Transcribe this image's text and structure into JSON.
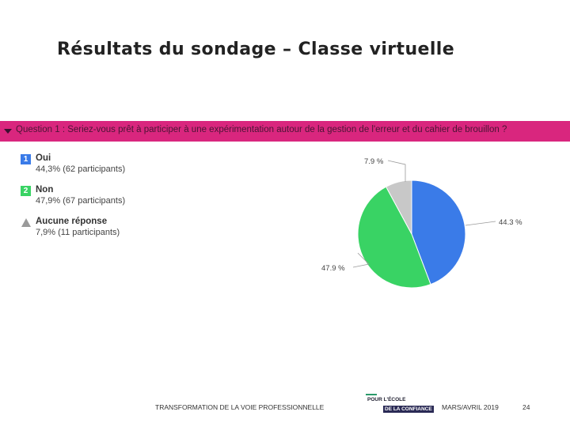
{
  "slide": {
    "title": "Résultats du sondage – Classe virtuelle",
    "question": "Question 1 : Seriez-vous prêt à participer à une expérimentation autour de la gestion de l'erreur et du cahier de brouillon ?",
    "question_bar_color": "#d9267e"
  },
  "legend": [
    {
      "marker": "1",
      "label": "Oui",
      "detail": "44,3% (62 participants)",
      "color": "#3a7be8"
    },
    {
      "marker": "2",
      "label": "Non",
      "detail": "47,9% (67 participants)",
      "color": "#39d364"
    },
    {
      "marker": "triangle-icon",
      "label": "Aucune réponse",
      "detail": "7,9% (11 participants)",
      "color": "#b8b8b8"
    }
  ],
  "chart_data": {
    "type": "pie",
    "slices": [
      {
        "label": "Oui",
        "value": 44.3,
        "data_label": "44.3 %",
        "participants": 62,
        "color": "#3a7be8"
      },
      {
        "label": "Non",
        "value": 47.9,
        "data_label": "47.9 %",
        "participants": 67,
        "color": "#39d364"
      },
      {
        "label": "Aucune réponse",
        "value": 7.9,
        "data_label": "7.9 %",
        "participants": 11,
        "color": "#c8c8c8"
      }
    ]
  },
  "footer": {
    "left": "TRANSFORMATION DE LA VOIE PROFESSIONNELLE",
    "logo_line1": "POUR L'ÉCOLE",
    "logo_line2": "DE LA CONFIANCE",
    "date": "MARS/AVRIL 2019",
    "page": "24"
  }
}
